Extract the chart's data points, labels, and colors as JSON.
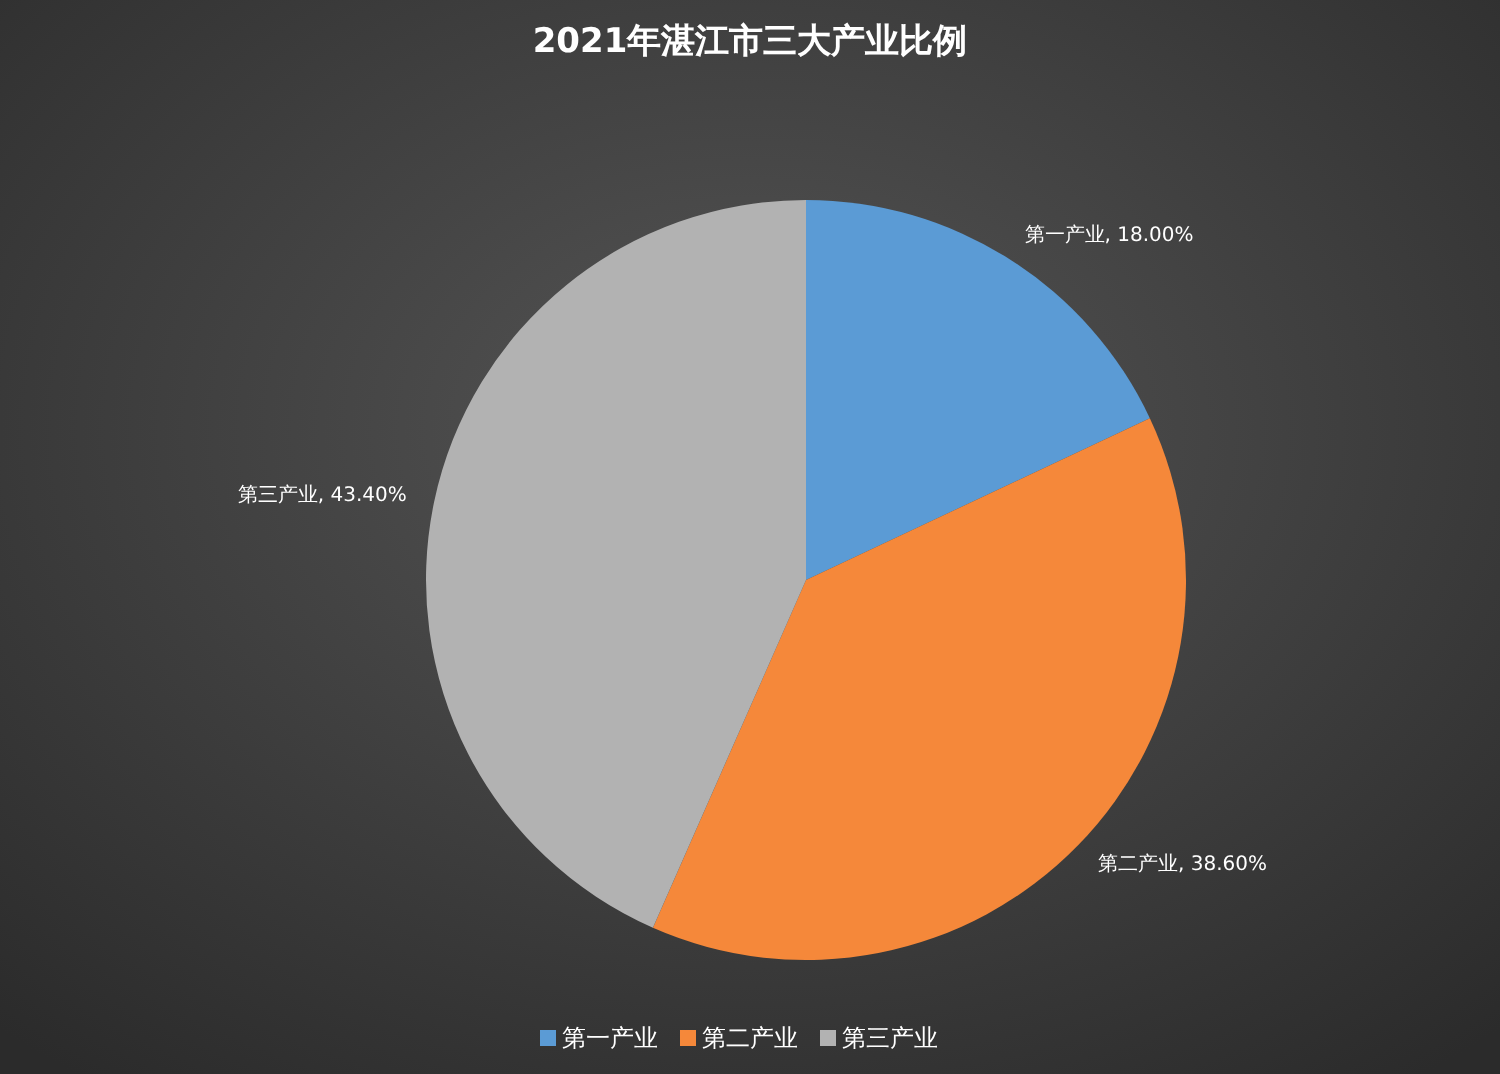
{
  "chart_data": {
    "type": "pie",
    "title": "2021年湛江市三大产业比例",
    "categories": [
      "第一产业",
      "第二产业",
      "第三产业"
    ],
    "values": [
      18.0,
      38.6,
      43.4
    ],
    "value_labels": [
      "第一产业, 18.00%",
      "第二产业, 38.60%",
      "第三产业, 43.40%"
    ],
    "colors": [
      "#5b9bd5",
      "#f5883a",
      "#b2b2b2"
    ],
    "legend": "bottom"
  }
}
